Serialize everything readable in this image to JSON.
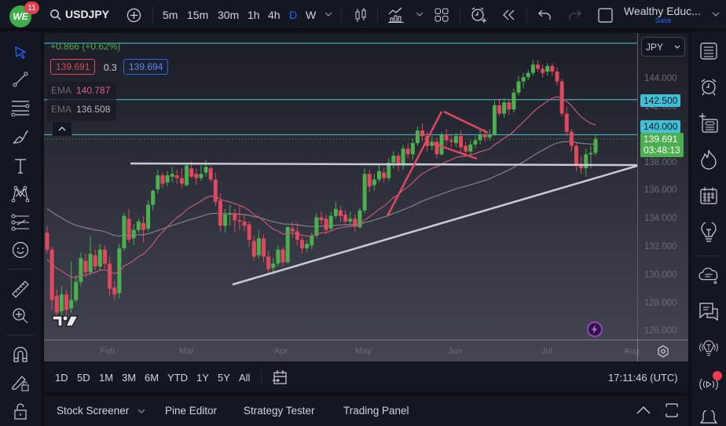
{
  "header": {
    "logo_text": "WE",
    "notification_count": "11",
    "symbol": "USDJPY",
    "timeframes": [
      "5m",
      "15m",
      "30m",
      "1h",
      "4h",
      "D",
      "W"
    ],
    "active_timeframe": "D",
    "account_name": "Wealthy Educ...",
    "save_label": "Save"
  },
  "legend": {
    "change": "+0.866 (+0.62%)",
    "bid": "139.691",
    "spread": "0.3",
    "ask": "139.694",
    "ema1_label": "EMA",
    "ema1_value": "140.787",
    "ema2_label": "EMA",
    "ema2_value": "136.508"
  },
  "currency_select": "JPY",
  "price_scale": {
    "labels": [
      "144.000",
      "142.000",
      "140.000",
      "138.000",
      "136.000",
      "134.000",
      "132.000",
      "130.000",
      "128.000",
      "126.000"
    ],
    "tag_142_5": "142.500",
    "tag_140": "140.000",
    "last_price": "139.691",
    "countdown": "03:48:13"
  },
  "time_axis": {
    "labels": [
      "Feb",
      "Mar",
      "Apr",
      "May",
      "Jun",
      "Jul",
      "Aug"
    ]
  },
  "bottom": {
    "ranges": [
      "1D",
      "5D",
      "1M",
      "3M",
      "6M",
      "YTD",
      "1Y",
      "5Y",
      "All"
    ],
    "clock": "17:11:46 (UTC)"
  },
  "panels": [
    "Stock Screener",
    "Pine Editor",
    "Strategy Tester",
    "Trading Panel"
  ],
  "colors": {
    "up": "#4caf50",
    "down": "#e0485f",
    "ema_fast": "#c9577a",
    "ema_slow": "#9598a1",
    "hline": "#4dc3d8",
    "accent": "#2962ff"
  },
  "chart": {
    "ymin": 125.2,
    "ymax": 146.7,
    "candles": [
      [
        133,
        131.8,
        133.5,
        131.5
      ],
      [
        131.8,
        128.2,
        132,
        127.5
      ],
      [
        128.5,
        127.3,
        129,
        126.8
      ],
      [
        127.4,
        128.6,
        129.2,
        127
      ],
      [
        128.6,
        127.5,
        128.9,
        127.1
      ],
      [
        127.6,
        128.2,
        131,
        127.3
      ],
      [
        128.2,
        129.5,
        130,
        128
      ],
      [
        129.5,
        131.2,
        131.6,
        129.2
      ],
      [
        131,
        130.2,
        131.5,
        129.8
      ],
      [
        130.2,
        131.5,
        132.8,
        130
      ],
      [
        131.4,
        130.6,
        131.8,
        130.3
      ],
      [
        130.6,
        131.8,
        132.2,
        130.3
      ],
      [
        131.8,
        130.8,
        132.1,
        130.5
      ],
      [
        130.8,
        129,
        131.3,
        128.5
      ],
      [
        129.1,
        128.6,
        129.6,
        128.2
      ],
      [
        128.7,
        131.9,
        132.2,
        128.3
      ],
      [
        131.9,
        134.2,
        134.4,
        131.7
      ],
      [
        134,
        132.5,
        134.7,
        132.3
      ],
      [
        132.6,
        133.2,
        133.6,
        132.1
      ],
      [
        133.2,
        133.8,
        134,
        133
      ],
      [
        133.7,
        133.2,
        134.2,
        132.3
      ],
      [
        133.3,
        135,
        135.3,
        133.1
      ],
      [
        135,
        136,
        136.1,
        134.6
      ],
      [
        136.1,
        137.1,
        137.5,
        135.8
      ],
      [
        137.1,
        136.5,
        137.3,
        136.2
      ],
      [
        136.6,
        137.1,
        137.4,
        136.3
      ],
      [
        137,
        137.2,
        137.7,
        136.6
      ],
      [
        137.1,
        136.9,
        137.5,
        136.5
      ],
      [
        136.9,
        136.5,
        137.6,
        136.2
      ],
      [
        136.4,
        137.8,
        138,
        136.3
      ],
      [
        137.6,
        137,
        138.1,
        136.9
      ],
      [
        137.2,
        136.9,
        137.6,
        136.4
      ],
      [
        136.9,
        137.2,
        137.8,
        136.7
      ],
      [
        137.3,
        137.7,
        138.2,
        137
      ],
      [
        137.6,
        136.8,
        137.8,
        136.6
      ],
      [
        136.8,
        135.2,
        137.3,
        134.9
      ],
      [
        135.3,
        133.5,
        135.8,
        133.1
      ],
      [
        133.5,
        134.3,
        134.7,
        133
      ],
      [
        134.3,
        134.4,
        135,
        133.5
      ],
      [
        134.4,
        133.9,
        134.7,
        133
      ],
      [
        133.9,
        133.8,
        134.9,
        133.2
      ],
      [
        133.8,
        133.5,
        134.3,
        133.1
      ],
      [
        133.6,
        132.5,
        133.8,
        132
      ],
      [
        132.4,
        131.3,
        132.8,
        131
      ],
      [
        131.4,
        132.6,
        133.2,
        131.2
      ],
      [
        132.6,
        131.3,
        132.9,
        130.9
      ],
      [
        131.3,
        130.4,
        131.7,
        130.1
      ],
      [
        130.5,
        130.8,
        131.2,
        130
      ],
      [
        130.8,
        131.8,
        132.1,
        130.6
      ],
      [
        131.8,
        130.9,
        132,
        130.6
      ],
      [
        130.9,
        133.4,
        133.5,
        130.8
      ],
      [
        133.3,
        133.1,
        133.8,
        132.6
      ],
      [
        133.1,
        132.5,
        133.7,
        132.1
      ],
      [
        132.5,
        131.9,
        132.7,
        131.5
      ],
      [
        131.9,
        132.2,
        132.5,
        131.6
      ],
      [
        132.1,
        132.8,
        133,
        131.8
      ],
      [
        132.8,
        134.1,
        134.4,
        132.6
      ],
      [
        134.1,
        133.9,
        134.5,
        133.6
      ],
      [
        134,
        133.2,
        134.3,
        132.9
      ],
      [
        133.3,
        134.2,
        134.5,
        133.1
      ],
      [
        134.2,
        134.7,
        135.2,
        134
      ],
      [
        134.6,
        134.2,
        134.9,
        133.8
      ],
      [
        134.3,
        133.8,
        134.6,
        133.6
      ],
      [
        133.8,
        134,
        134.5,
        133.6
      ],
      [
        134,
        133.5,
        134.3,
        133.1
      ],
      [
        133.4,
        134.6,
        134.8,
        133.3
      ],
      [
        134.6,
        137.2,
        137.6,
        134.4
      ],
      [
        137.2,
        136.3,
        137.5,
        135.9
      ],
      [
        136.4,
        136.8,
        137.2,
        136
      ],
      [
        136.8,
        137.4,
        137.8,
        136.6
      ],
      [
        137.3,
        136.9,
        137.6,
        136.6
      ],
      [
        136.9,
        138,
        138.3,
        136.7
      ],
      [
        138,
        138.5,
        138.8,
        137.6
      ],
      [
        138.5,
        137.8,
        138.7,
        137.4
      ],
      [
        137.8,
        139,
        139.3,
        137.5
      ],
      [
        139,
        138.6,
        139.4,
        138.3
      ],
      [
        138.6,
        139.4,
        139.7,
        138.2
      ],
      [
        139.4,
        140.3,
        140.6,
        139.2
      ],
      [
        140.3,
        139.9,
        140.8,
        139.5
      ],
      [
        139.9,
        139.2,
        140.2,
        138.8
      ],
      [
        139.2,
        139.5,
        139.9,
        138.9
      ],
      [
        139.5,
        138.6,
        139.8,
        138.3
      ],
      [
        138.6,
        140,
        140.2,
        138.5
      ],
      [
        140,
        139.6,
        140.4,
        139.2
      ],
      [
        139.6,
        139.5,
        140,
        139.1
      ],
      [
        139.4,
        139.9,
        140.1,
        139.1
      ],
      [
        139.9,
        139.1,
        140.3,
        138.7
      ],
      [
        139.2,
        138.8,
        139.5,
        138.5
      ],
      [
        138.8,
        139.3,
        139.6,
        138.5
      ],
      [
        139.3,
        139.6,
        139.9,
        139
      ],
      [
        139.6,
        140,
        140.4,
        139.3
      ],
      [
        140,
        139.8,
        140.4,
        139.5
      ],
      [
        139.8,
        140,
        140.4,
        139.6
      ],
      [
        140,
        142.1,
        142.4,
        139.9
      ],
      [
        142.1,
        141.5,
        142.6,
        141.3
      ],
      [
        141.5,
        142.3,
        142.6,
        141.2
      ],
      [
        142.3,
        141.8,
        142.5,
        141.4
      ],
      [
        141.8,
        143,
        143.3,
        141.6
      ],
      [
        143,
        143.8,
        144.2,
        142.8
      ],
      [
        143.8,
        144.1,
        144.4,
        143.3
      ],
      [
        144.1,
        144.4,
        144.6,
        143.9
      ],
      [
        144.4,
        145,
        145.3,
        144.2
      ],
      [
        145,
        144.7,
        145.3,
        144.5
      ],
      [
        144.7,
        144.4,
        145,
        144.1
      ],
      [
        144.5,
        144.9,
        145.1,
        144.2
      ],
      [
        144.9,
        144.5,
        145.1,
        144.2
      ],
      [
        144.5,
        143.8,
        144.8,
        143.5
      ],
      [
        143.8,
        141.5,
        144,
        141.3
      ],
      [
        141.5,
        140.2,
        142,
        139.9
      ],
      [
        140.2,
        139.2,
        140.4,
        138.8
      ],
      [
        139.2,
        137.8,
        139.4,
        137.4
      ],
      [
        137.8,
        137.6,
        138.5,
        137.2
      ],
      [
        137.6,
        138.6,
        139,
        137
      ],
      [
        138.6,
        138.7,
        139.2,
        137.6
      ],
      [
        138.7,
        139.7,
        140,
        138.5
      ]
    ]
  }
}
